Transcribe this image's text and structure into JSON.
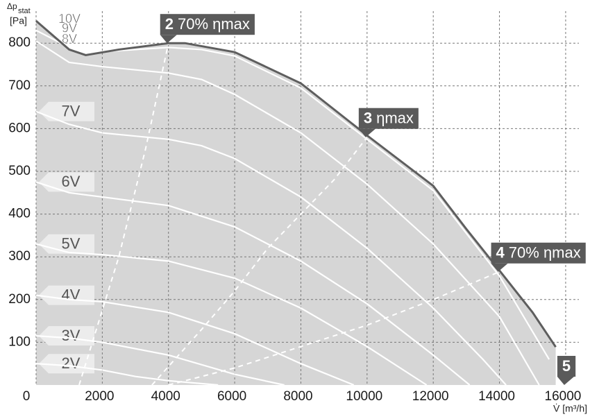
{
  "chart_data": {
    "type": "line",
    "ylabel": {
      "symbol": "Δp",
      "subscript": "stat",
      "unit": "[Pa]"
    },
    "xlabel": "V̇ [m³/h]",
    "xlim": [
      0,
      16400
    ],
    "ylim": [
      0,
      875
    ],
    "xticks": [
      0,
      2000,
      4000,
      6000,
      8000,
      10000,
      12000,
      14000,
      16000
    ],
    "yticks": [
      100,
      200,
      300,
      400,
      500,
      600,
      700,
      800
    ],
    "grid": true,
    "area_color": "#d6d6d6",
    "series": [
      {
        "name": "10V",
        "color": "#5e5e5e",
        "x": [
          0,
          1000,
          1500,
          2500,
          4000,
          4500,
          6000,
          8000,
          10000,
          12000,
          13000,
          14000,
          15000,
          15700
        ],
        "values": [
          852,
          785,
          772,
          785,
          800,
          800,
          779,
          706,
          584,
          466,
          365,
          268,
          170,
          89
        ]
      },
      {
        "name": "9V",
        "color": "#ffffff",
        "x": [
          0,
          1000,
          2000,
          3000,
          4000,
          5000,
          6000,
          8000,
          10000,
          12000,
          14000,
          15500
        ],
        "values": [
          830,
          790,
          780,
          785,
          790,
          785,
          770,
          695,
          575,
          455,
          255,
          60
        ]
      },
      {
        "name": "8V",
        "color": "#ffffff",
        "x": [
          0,
          1000,
          2000,
          4000,
          5000,
          6000,
          8000,
          10000,
          12000,
          14000,
          15200
        ],
        "values": [
          805,
          755,
          745,
          730,
          715,
          680,
          590,
          470,
          330,
          160,
          0
        ]
      },
      {
        "name": "7V",
        "color": "#ffffff",
        "x": [
          0,
          1000,
          2000,
          4000,
          5000,
          6000,
          8000,
          10000,
          12000,
          13500,
          14200
        ],
        "values": [
          640,
          610,
          590,
          575,
          560,
          530,
          440,
          320,
          180,
          60,
          0
        ]
      },
      {
        "name": "6V",
        "color": "#ffffff",
        "x": [
          0,
          1000,
          2000,
          4000,
          6000,
          8000,
          10000,
          12000,
          13100
        ],
        "values": [
          475,
          450,
          440,
          420,
          370,
          290,
          190,
          70,
          0
        ]
      },
      {
        "name": "5V",
        "color": "#ffffff",
        "x": [
          0,
          1000,
          2000,
          4000,
          6000,
          8000,
          10000,
          11800
        ],
        "values": [
          330,
          310,
          305,
          290,
          250,
          180,
          90,
          0
        ]
      },
      {
        "name": "4V",
        "color": "#ffffff",
        "x": [
          0,
          1000,
          2000,
          4000,
          6000,
          8000,
          9600
        ],
        "values": [
          210,
          200,
          195,
          170,
          120,
          50,
          0
        ]
      },
      {
        "name": "3V",
        "color": "#ffffff",
        "x": [
          0,
          1000,
          2000,
          4000,
          6000,
          7500
        ],
        "values": [
          115,
          110,
          100,
          70,
          25,
          0
        ]
      },
      {
        "name": "2V",
        "color": "#ffffff",
        "x": [
          0,
          1000,
          2000,
          3000,
          4000,
          5500
        ],
        "values": [
          50,
          45,
          35,
          20,
          10,
          0
        ]
      }
    ],
    "dashed_lines": [
      {
        "color": "#ffffff",
        "x": [
          1300,
          2500,
          3300,
          4000
        ],
        "values": [
          0,
          300,
          550,
          800
        ]
      },
      {
        "color": "#ffffff",
        "x": [
          3500,
          5000,
          6000,
          7000,
          8000,
          9000,
          10000
        ],
        "values": [
          0,
          130,
          220,
          320,
          400,
          480,
          580
        ]
      },
      {
        "color": "#ffffff",
        "x": [
          4000,
          6000,
          8000,
          10000,
          12000,
          14000
        ],
        "values": [
          0,
          40,
          90,
          140,
          200,
          265
        ]
      }
    ],
    "annotations": [
      {
        "num": "2",
        "text": "70% ηmax",
        "x": 4000,
        "y": 800
      },
      {
        "num": "3",
        "text": "ηmax",
        "x": 10000,
        "y": 580
      },
      {
        "num": "4",
        "text": "70% ηmax",
        "x": 14000,
        "y": 265
      },
      {
        "num": "5",
        "x": 16000,
        "y": 0
      }
    ]
  }
}
